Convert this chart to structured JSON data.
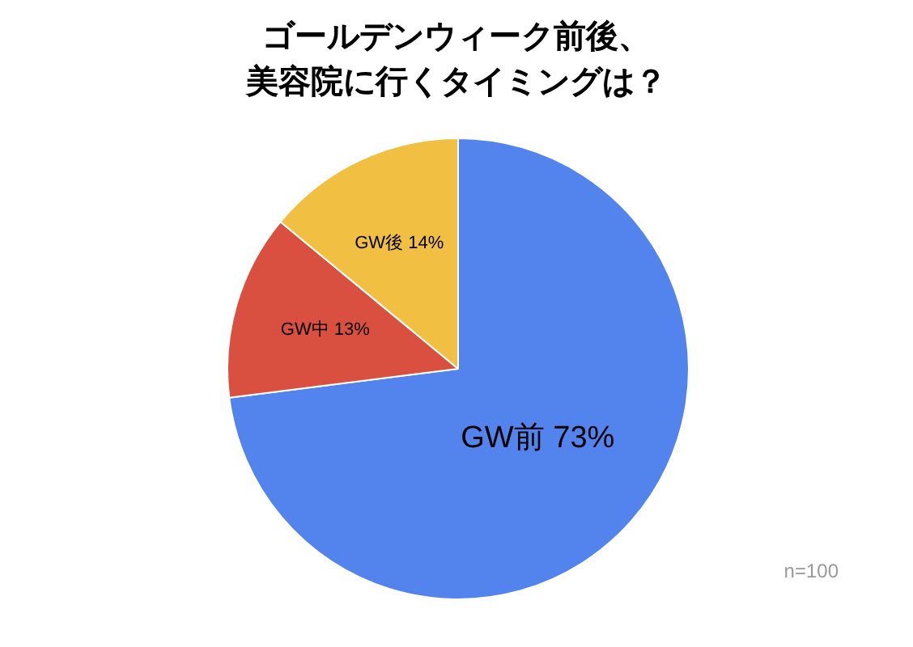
{
  "chart_data": {
    "type": "pie",
    "title": "ゴールデンウィーク前後、美容院に行くタイミングは？",
    "categories": [
      "GW前",
      "GW中",
      "GW後"
    ],
    "values": [
      73,
      13,
      14
    ],
    "colors": [
      "#5383ec",
      "#d95040",
      "#f1bf42"
    ],
    "value_labels": [
      "73%",
      "13%",
      "14%"
    ],
    "annotations": [
      "n=100"
    ],
    "legend": false
  }
}
